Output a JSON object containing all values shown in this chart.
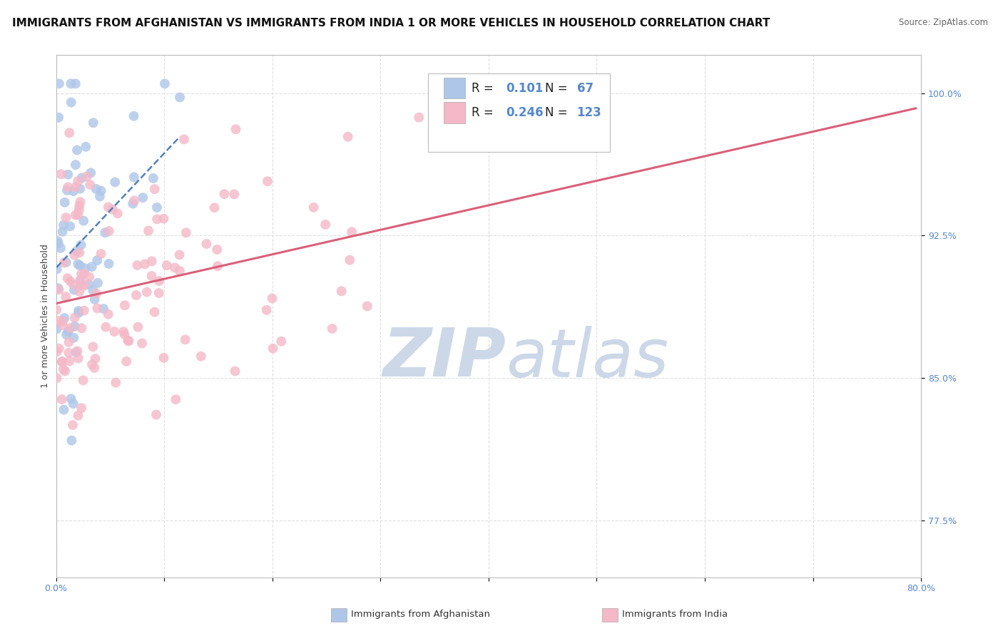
{
  "title": "IMMIGRANTS FROM AFGHANISTAN VS IMMIGRANTS FROM INDIA 1 OR MORE VEHICLES IN HOUSEHOLD CORRELATION CHART",
  "source": "Source: ZipAtlas.com",
  "ylabel": "1 or more Vehicles in Household",
  "xlim": [
    0.0,
    80.0
  ],
  "ylim": [
    74.5,
    102.0
  ],
  "xticks": [
    0.0,
    10.0,
    20.0,
    30.0,
    40.0,
    50.0,
    60.0,
    70.0,
    80.0
  ],
  "ytick_positions": [
    77.5,
    85.0,
    92.5,
    100.0
  ],
  "ytick_labels": [
    "77.5%",
    "85.0%",
    "92.5%",
    "100.0%"
  ],
  "afghanistan_color": "#aec6e8",
  "india_color": "#f4b8c8",
  "afghanistan_R": 0.101,
  "afghanistan_N": 67,
  "india_R": 0.246,
  "india_N": 123,
  "afghanistan_trend_color": "#5580bb",
  "india_trend_color": "#d9607a",
  "background_color": "#ffffff",
  "grid_color": "#e0e0e0",
  "watermark_color": "#ccd8e8",
  "title_fontsize": 11,
  "axis_label_fontsize": 9,
  "tick_fontsize": 9,
  "legend_fontsize": 12,
  "marker_size": 10,
  "tick_color": "#5588cc"
}
